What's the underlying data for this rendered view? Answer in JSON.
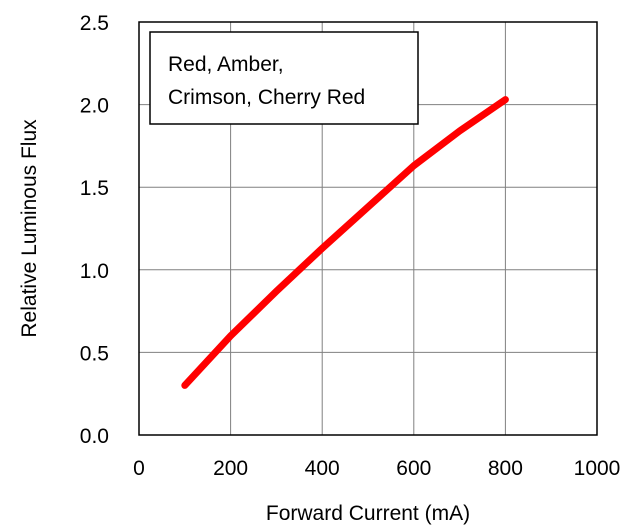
{
  "chart_data": {
    "type": "line",
    "title": "",
    "xlabel": "Forward Current (mA)",
    "ylabel": "Relative Luminous Flux",
    "xlim": [
      0,
      1000
    ],
    "ylim": [
      0,
      2.5
    ],
    "xticks": [
      "0",
      "200",
      "400",
      "600",
      "800",
      "1000"
    ],
    "yticks": [
      "0.0",
      "0.5",
      "1.0",
      "1.5",
      "2.0",
      "2.5"
    ],
    "grid": true,
    "legend_position": "top-left",
    "legend_lines": [
      "Red, Amber,",
      "Crimson, Cherry Red"
    ],
    "series": [
      {
        "color": "#ff0000",
        "x": [
          100,
          200,
          300,
          400,
          500,
          600,
          700,
          800
        ],
        "y": [
          0.3,
          0.6,
          0.87,
          1.13,
          1.38,
          1.63,
          1.84,
          2.03
        ]
      }
    ]
  }
}
